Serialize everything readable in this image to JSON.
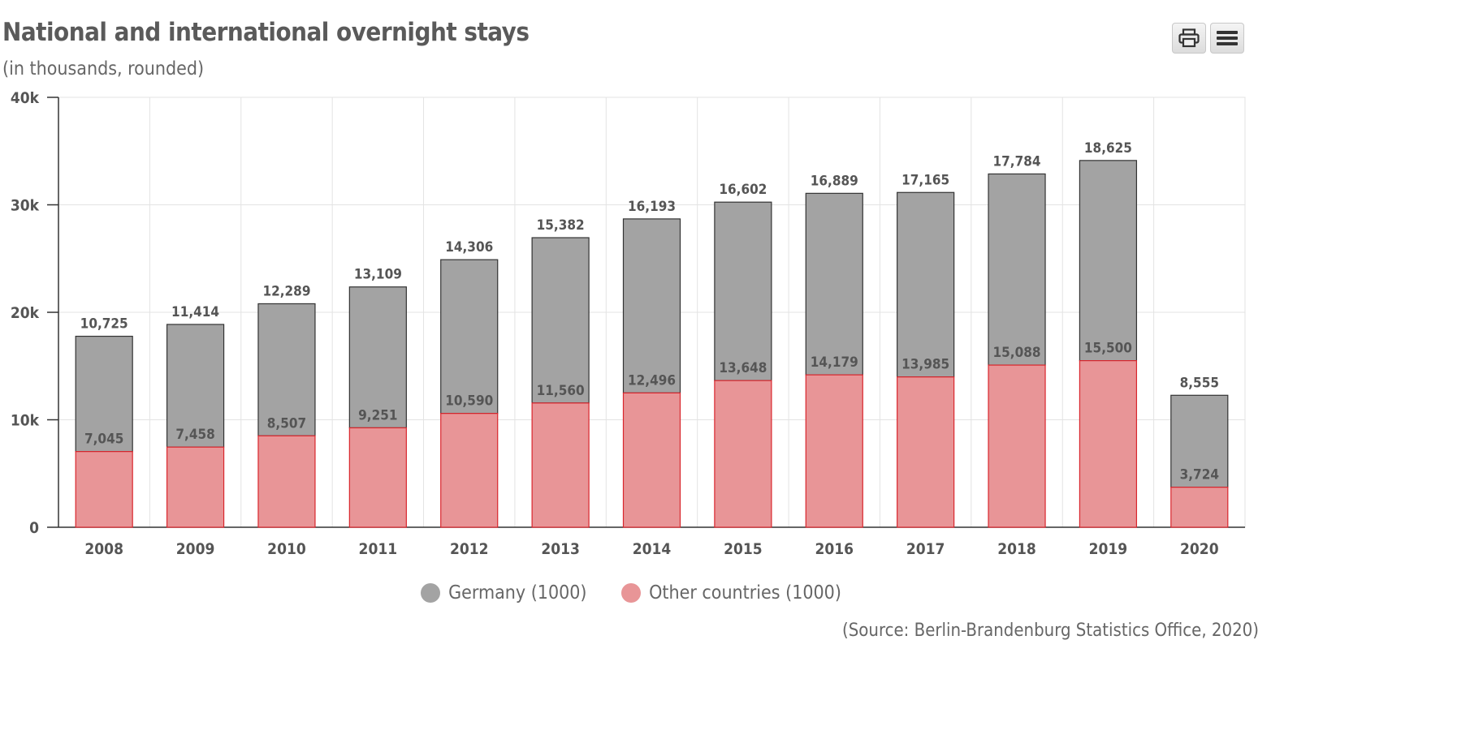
{
  "header": {
    "title": "National and international overnight stays",
    "subtitle": "(in thousands, rounded)"
  },
  "toolbar": {
    "print_icon": "print-icon",
    "menu_icon": "menu-icon"
  },
  "source": "(Source: Berlin-Brandenburg Statistics Office, 2020)",
  "colors": {
    "germany": "#a3a3a3",
    "other_countries": "#e89597",
    "other_countries_border": "#d9262d",
    "germany_border": "#333333"
  },
  "chart_data": {
    "type": "bar",
    "stacked": true,
    "title": "National and international overnight stays",
    "subtitle": "(in thousands, rounded)",
    "categories": [
      "2008",
      "2009",
      "2010",
      "2011",
      "2012",
      "2013",
      "2014",
      "2015",
      "2016",
      "2017",
      "2018",
      "2019",
      "2020"
    ],
    "series": [
      {
        "name": "Germany (1000)",
        "values": [
          10725,
          11414,
          12289,
          13109,
          14306,
          15382,
          16193,
          16602,
          16889,
          17165,
          17784,
          18625,
          8555
        ]
      },
      {
        "name": "Other countries (1000)",
        "values": [
          7045,
          7458,
          8507,
          9251,
          10590,
          11560,
          12496,
          13648,
          14179,
          13985,
          15088,
          15500,
          3724
        ]
      }
    ],
    "data_labels": {
      "Germany (1000)": [
        "10,725",
        "11,414",
        "12,289",
        "13,109",
        "14,306",
        "15,382",
        "16,193",
        "16,602",
        "16,889",
        "17,165",
        "17,784",
        "18,625",
        "8,555"
      ],
      "Other countries (1000)": [
        "7,045",
        "7,458",
        "8,507",
        "9,251",
        "10,590",
        "11,560",
        "12,496",
        "13,648",
        "14,179",
        "13,985",
        "15,088",
        "15,500",
        "3,724"
      ]
    },
    "ylim": [
      0,
      40000
    ],
    "yticks": [
      0,
      10000,
      20000,
      30000,
      40000
    ],
    "ytick_labels": [
      "0",
      "10k",
      "20k",
      "30k",
      "40k"
    ],
    "grid": true,
    "legend_position": "bottom-center"
  }
}
